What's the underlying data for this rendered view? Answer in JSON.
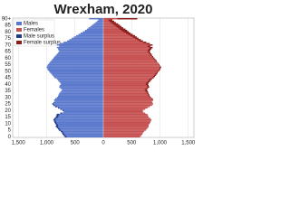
{
  "chart_data": {
    "type": "population-pyramid",
    "title": "Wrexham, 2020",
    "categories": [
      0,
      1,
      2,
      3,
      4,
      5,
      6,
      7,
      8,
      9,
      10,
      11,
      12,
      13,
      14,
      15,
      16,
      17,
      18,
      19,
      20,
      21,
      22,
      23,
      24,
      25,
      26,
      27,
      28,
      29,
      30,
      31,
      32,
      33,
      34,
      35,
      36,
      37,
      38,
      39,
      40,
      41,
      42,
      43,
      44,
      45,
      46,
      47,
      48,
      49,
      50,
      51,
      52,
      53,
      54,
      55,
      56,
      57,
      58,
      59,
      60,
      61,
      62,
      63,
      64,
      65,
      66,
      67,
      68,
      69,
      70,
      71,
      72,
      73,
      74,
      75,
      76,
      77,
      78,
      79,
      80,
      81,
      82,
      83,
      84,
      85,
      86,
      87,
      88,
      89,
      90
    ],
    "series": [
      {
        "name": "Males",
        "color": "#5a78cc",
        "values": [
          680,
          700,
          720,
          730,
          750,
          780,
          800,
          820,
          840,
          830,
          850,
          860,
          870,
          880,
          860,
          840,
          830,
          820,
          760,
          700,
          720,
          760,
          800,
          850,
          880,
          900,
          880,
          860,
          870,
          850,
          820,
          800,
          790,
          780,
          760,
          740,
          730,
          760,
          780,
          770,
          750,
          760,
          780,
          800,
          820,
          860,
          880,
          900,
          920,
          940,
          960,
          980,
          990,
          1000,
          990,
          980,
          960,
          940,
          920,
          900,
          880,
          860,
          840,
          820,
          800,
          780,
          790,
          800,
          820,
          780,
          820,
          760,
          700,
          640,
          600,
          560,
          520,
          480,
          440,
          400,
          360,
          320,
          290,
          260,
          230,
          200,
          170,
          140,
          110,
          90,
          250
        ]
      },
      {
        "name": "Females",
        "color": "#c65050",
        "values": [
          650,
          670,
          690,
          700,
          720,
          750,
          770,
          790,
          800,
          800,
          820,
          830,
          840,
          850,
          830,
          800,
          790,
          780,
          740,
          700,
          700,
          740,
          780,
          820,
          860,
          880,
          870,
          860,
          880,
          870,
          840,
          820,
          810,
          800,
          790,
          780,
          770,
          790,
          810,
          800,
          790,
          800,
          820,
          840,
          860,
          890,
          910,
          930,
          950,
          960,
          980,
          1000,
          1010,
          1020,
          1000,
          990,
          970,
          950,
          940,
          920,
          900,
          880,
          860,
          850,
          830,
          820,
          830,
          850,
          870,
          830,
          870,
          820,
          760,
          700,
          660,
          620,
          590,
          560,
          520,
          480,
          450,
          420,
          390,
          350,
          320,
          290,
          260,
          220,
          190,
          160,
          600
        ]
      }
    ],
    "surplus": [
      {
        "name": "Male surplus",
        "color": "#23398a"
      },
      {
        "name": "Female surplus",
        "color": "#8a1c1c"
      }
    ],
    "xlim": [
      -1600,
      1600
    ],
    "xticks": [
      {
        "value": -1500,
        "label": "1,500"
      },
      {
        "value": -1000,
        "label": "1,000"
      },
      {
        "value": -500,
        "label": "500"
      },
      0,
      500,
      {
        "value": 1000,
        "label": "1,000"
      },
      {
        "value": 1500,
        "label": "1,500"
      }
    ],
    "ylim": [
      0,
      91
    ],
    "yticks": [
      0,
      5,
      10,
      15,
      20,
      25,
      30,
      35,
      40,
      45,
      50,
      55,
      60,
      65,
      70,
      75,
      80,
      85,
      {
        "value": 90,
        "label": "90+"
      }
    ],
    "grid": true
  }
}
